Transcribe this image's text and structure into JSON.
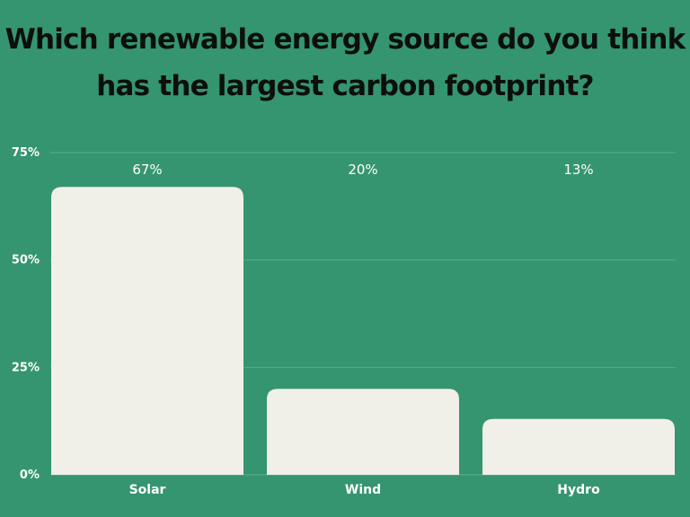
{
  "chart_data": {
    "type": "bar",
    "title_lines": [
      "Which renewable energy source do you think",
      "has the largest carbon footprint?"
    ],
    "categories": [
      "Solar",
      "Wind",
      "Hydro"
    ],
    "values": [
      67,
      20,
      13
    ],
    "data_labels": [
      "67%",
      "20%",
      "13%"
    ],
    "y_ticks": [
      {
        "value": 75,
        "label": "75%"
      },
      {
        "value": 50,
        "label": "50%"
      },
      {
        "value": 25,
        "label": "25%"
      },
      {
        "value": 0,
        "label": "0%"
      }
    ],
    "ylim": [
      0,
      75
    ],
    "grid": true,
    "xlabel": "",
    "ylabel": "",
    "colors": {
      "background": "#359570",
      "bar": "#f0efe8",
      "grid": "#5aae8c",
      "text": "#ffffff",
      "title": "#0c0f0d"
    }
  }
}
